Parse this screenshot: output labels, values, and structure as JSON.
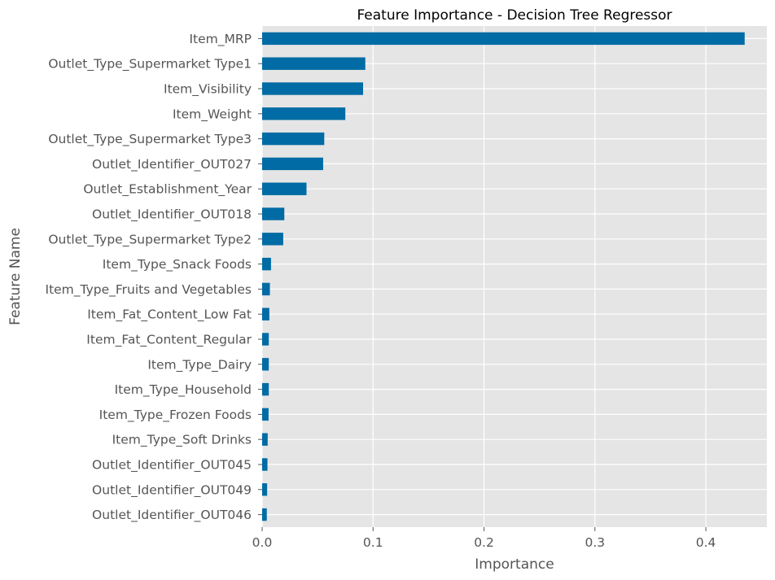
{
  "chart_data": {
    "type": "bar",
    "orientation": "horizontal",
    "title": "Feature Importance - Decision Tree Regressor",
    "xlabel": "Importance",
    "ylabel": "Feature Name",
    "xlim": [
      0,
      0.455
    ],
    "xticks": [
      0.0,
      0.1,
      0.2,
      0.3,
      0.4
    ],
    "xtick_labels": [
      "0.0",
      "0.1",
      "0.2",
      "0.3",
      "0.4"
    ],
    "grid": true,
    "categories": [
      "Item_MRP",
      "Outlet_Type_Supermarket Type1",
      "Item_Visibility",
      "Item_Weight",
      "Outlet_Type_Supermarket Type3",
      "Outlet_Identifier_OUT027",
      "Outlet_Establishment_Year",
      "Outlet_Identifier_OUT018",
      "Outlet_Type_Supermarket Type2",
      "Item_Type_Snack Foods",
      "Item_Type_Fruits and Vegetables",
      "Item_Fat_Content_Low Fat",
      "Item_Fat_Content_Regular",
      "Item_Type_Dairy",
      "Item_Type_Household",
      "Item_Type_Frozen Foods",
      "Item_Type_Soft Drinks",
      "Outlet_Identifier_OUT045",
      "Outlet_Identifier_OUT049",
      "Outlet_Identifier_OUT046"
    ],
    "values": [
      0.435,
      0.093,
      0.091,
      0.075,
      0.056,
      0.055,
      0.04,
      0.02,
      0.019,
      0.008,
      0.007,
      0.0065,
      0.006,
      0.006,
      0.006,
      0.0058,
      0.005,
      0.0048,
      0.0045,
      0.0042
    ],
    "colors": {
      "bar": "#006BA4",
      "plot_background": "#E5E5E5",
      "grid": "#FFFFFF"
    }
  }
}
